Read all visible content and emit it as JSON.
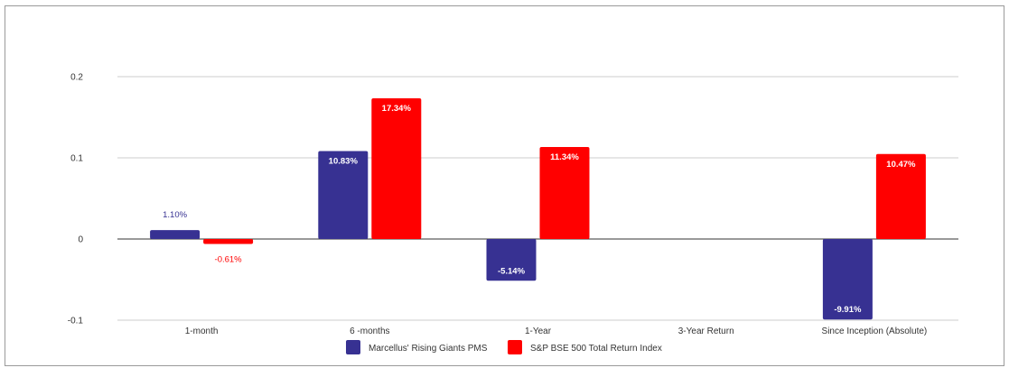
{
  "chart_data": {
    "type": "bar",
    "categories": [
      "1-month",
      "6 -months",
      "1-Year",
      "3-Year Return",
      "Since Inception (Absolute)"
    ],
    "series": [
      {
        "name": "Marcellus' Rising Giants PMS",
        "color": "#373192",
        "values": [
          0.011,
          0.1083,
          -0.0514,
          null,
          -0.0991
        ],
        "labels": [
          "1.10%",
          "10.83%",
          "-5.14%",
          "",
          "-9.91%"
        ]
      },
      {
        "name": "S&P BSE 500 Total Return Index",
        "color": "#ff0000",
        "values": [
          -0.0061,
          0.1734,
          0.1134,
          null,
          0.1047
        ],
        "labels": [
          "-0.61%",
          "17.34%",
          "11.34%",
          "",
          "10.47%"
        ]
      }
    ],
    "y_ticks": [
      "0.2",
      "0.1",
      "0",
      "-0.1"
    ],
    "ylim": [
      -0.1,
      0.2
    ],
    "grid": true,
    "legend_position": "bottom"
  }
}
